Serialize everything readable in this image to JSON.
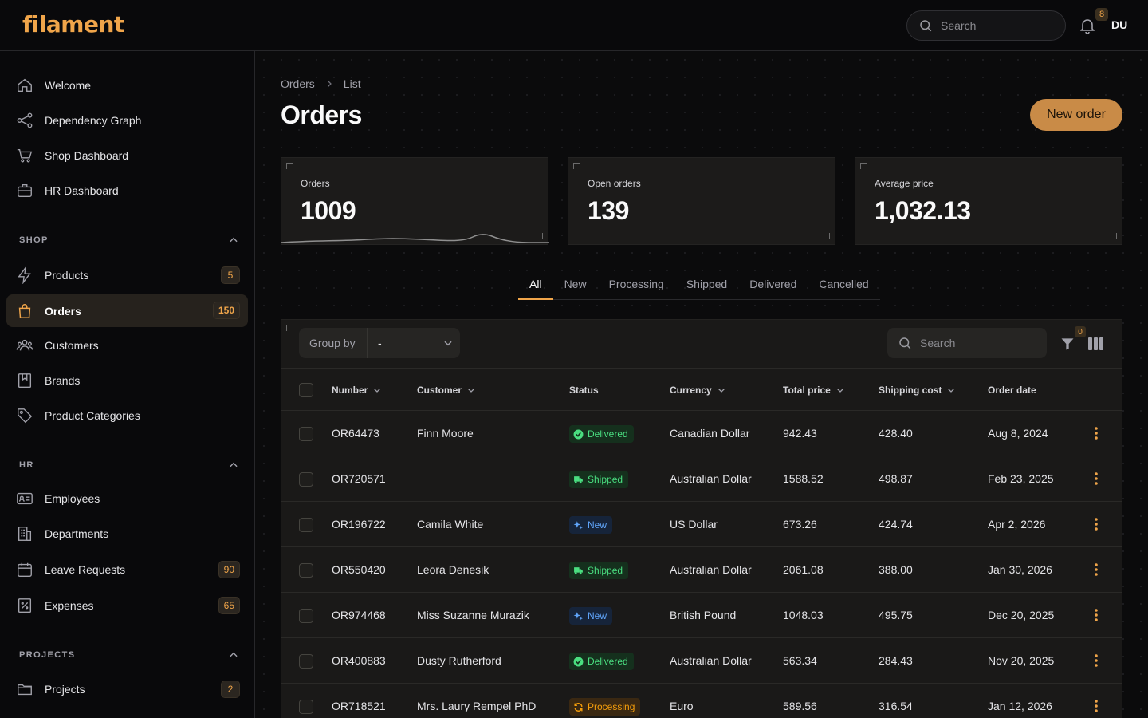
{
  "app": {
    "logo": "filament",
    "search_placeholder": "Search",
    "notification_count": "8",
    "user_initials": "DU"
  },
  "sidebar": {
    "top_items": [
      {
        "label": "Welcome",
        "icon": "home-icon"
      },
      {
        "label": "Dependency Graph",
        "icon": "share-graph-icon"
      },
      {
        "label": "Shop Dashboard",
        "icon": "cart-icon"
      },
      {
        "label": "HR Dashboard",
        "icon": "briefcase-icon"
      }
    ],
    "groups": [
      {
        "label": "SHOP",
        "items": [
          {
            "label": "Products",
            "icon": "bolt-icon",
            "badge": "5"
          },
          {
            "label": "Orders",
            "icon": "shopping-bag-icon",
            "badge": "150",
            "active": true
          },
          {
            "label": "Customers",
            "icon": "users-icon"
          },
          {
            "label": "Brands",
            "icon": "bookmark-icon"
          },
          {
            "label": "Product Categories",
            "icon": "tag-icon"
          }
        ]
      },
      {
        "label": "HR",
        "items": [
          {
            "label": "Employees",
            "icon": "id-card-icon"
          },
          {
            "label": "Departments",
            "icon": "building-icon"
          },
          {
            "label": "Leave Requests",
            "icon": "calendar-icon",
            "badge": "90"
          },
          {
            "label": "Expenses",
            "icon": "receipt-icon",
            "badge": "65"
          }
        ]
      },
      {
        "label": "PROJECTS",
        "items": [
          {
            "label": "Projects",
            "icon": "folder-icon",
            "badge": "2"
          }
        ]
      }
    ]
  },
  "breadcrumb": [
    "Orders",
    "List"
  ],
  "page": {
    "title": "Orders",
    "new_button": "New order"
  },
  "stats": [
    {
      "label": "Orders",
      "value": "1009"
    },
    {
      "label": "Open orders",
      "value": "139"
    },
    {
      "label": "Average price",
      "value": "1,032.13"
    }
  ],
  "tabs": [
    "All",
    "New",
    "Processing",
    "Shipped",
    "Delivered",
    "Cancelled"
  ],
  "active_tab": "All",
  "table": {
    "group_by_label": "Group by",
    "group_by_value": "-",
    "search_placeholder": "Search",
    "filter_count": "0",
    "columns": [
      "Number",
      "Customer",
      "Status",
      "Currency",
      "Total price",
      "Shipping cost",
      "Order date"
    ],
    "rows": [
      {
        "number": "OR64473",
        "customer": "Finn Moore",
        "status": "Delivered",
        "currency": "Canadian Dollar",
        "total": "942.43",
        "shipping": "428.40",
        "date": "Aug 8, 2024"
      },
      {
        "number": "OR720571",
        "customer": "",
        "status": "Shipped",
        "currency": "Australian Dollar",
        "total": "1588.52",
        "shipping": "498.87",
        "date": "Feb 23, 2025"
      },
      {
        "number": "OR196722",
        "customer": "Camila White",
        "status": "New",
        "currency": "US Dollar",
        "total": "673.26",
        "shipping": "424.74",
        "date": "Apr 2, 2026"
      },
      {
        "number": "OR550420",
        "customer": "Leora Denesik",
        "status": "Shipped",
        "currency": "Australian Dollar",
        "total": "2061.08",
        "shipping": "388.00",
        "date": "Jan 30, 2026"
      },
      {
        "number": "OR974468",
        "customer": "Miss Suzanne Murazik",
        "status": "New",
        "currency": "British Pound",
        "total": "1048.03",
        "shipping": "495.75",
        "date": "Dec 20, 2025"
      },
      {
        "number": "OR400883",
        "customer": "Dusty Rutherford",
        "status": "Delivered",
        "currency": "Australian Dollar",
        "total": "563.34",
        "shipping": "284.43",
        "date": "Nov 20, 2025"
      },
      {
        "number": "OR718521",
        "customer": "Mrs. Laury Rempel PhD",
        "status": "Processing",
        "currency": "Euro",
        "total": "589.56",
        "shipping": "316.54",
        "date": "Jan 12, 2026"
      }
    ]
  },
  "colors": {
    "accent": "#f0a54a",
    "button": "#c98b47"
  }
}
